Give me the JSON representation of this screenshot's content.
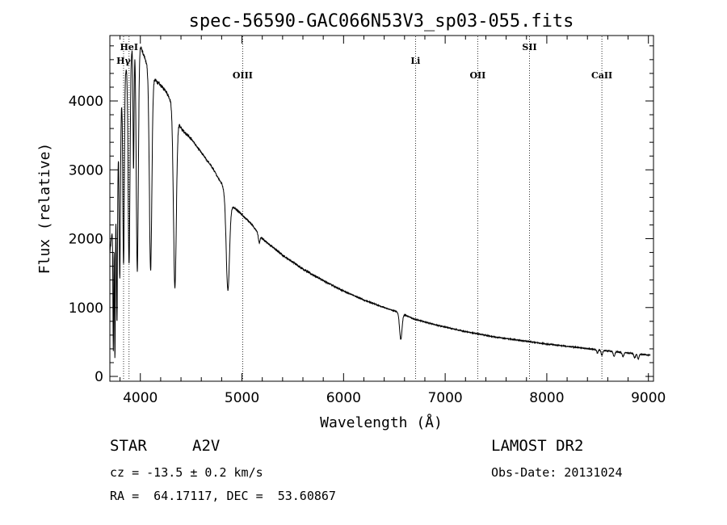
{
  "info": {
    "object_type": "STAR",
    "subclass": "A2V",
    "survey": "LAMOST DR2",
    "cz": "cz = -13.5 ± 0.2 km/s",
    "obs_date": "Obs-Date: 20131024",
    "coords": "RA =  64.17117, DEC =  53.60867"
  },
  "chart_data": {
    "type": "line",
    "title": "spec-56590-GAC066N53V3_sp03-055.fits",
    "xlabel": "Wavelength (Å)",
    "ylabel": "Flux (relative)",
    "xlim": [
      3700,
      9050
    ],
    "ylim": [
      -70,
      4950
    ],
    "xticks": [
      4000,
      5000,
      6000,
      7000,
      8000,
      9000
    ],
    "yticks": [
      0,
      1000,
      2000,
      3000,
      4000
    ],
    "spectral_lines": [
      {
        "label": "Hγ",
        "wavelength": 3835,
        "label_level": 2
      },
      {
        "label": "HeI",
        "wavelength": 3889,
        "label_level": 1
      },
      {
        "label": "OIII",
        "wavelength": 5007,
        "label_level": 3
      },
      {
        "label": "Li",
        "wavelength": 6708,
        "label_level": 2
      },
      {
        "label": "OII",
        "wavelength": 7320,
        "label_level": 3
      },
      {
        "label": "SII",
        "wavelength": 7830,
        "label_level": 1
      },
      {
        "label": "CaII",
        "wavelength": 8542,
        "label_level": 3
      }
    ],
    "continuum": {
      "x": [
        3700,
        3760,
        3800,
        3850,
        3900,
        3950,
        4000,
        4060,
        4100,
        4150,
        4250,
        4300,
        4400,
        4500,
        4600,
        4700,
        4800,
        4900,
        5000,
        5100,
        5200,
        5400,
        5600,
        5800,
        6000,
        6200,
        6400,
        6560,
        6700,
        6900,
        7200,
        7500,
        7800,
        8000,
        8300,
        8600,
        8800,
        9000
      ],
      "y": [
        1800,
        2600,
        3800,
        4400,
        4700,
        4850,
        4800,
        4550,
        4350,
        4300,
        4150,
        4000,
        3600,
        3450,
        3250,
        3050,
        2800,
        2480,
        2350,
        2200,
        2000,
        1760,
        1560,
        1390,
        1240,
        1110,
        1000,
        920,
        830,
        750,
        650,
        570,
        510,
        470,
        420,
        370,
        340,
        310
      ]
    },
    "absorption_lines": [
      {
        "center": 3734,
        "depth": 1900,
        "width": 4
      },
      {
        "center": 3750,
        "depth": 2200,
        "width": 4
      },
      {
        "center": 3770,
        "depth": 2100,
        "width": 5
      },
      {
        "center": 3798,
        "depth": 2300,
        "width": 6
      },
      {
        "center": 3835,
        "depth": 2600,
        "width": 7
      },
      {
        "center": 3889,
        "depth": 3000,
        "width": 9
      },
      {
        "center": 3933,
        "depth": 1800,
        "width": 5
      },
      {
        "center": 3970,
        "depth": 3300,
        "width": 10
      },
      {
        "center": 4101,
        "depth": 2800,
        "width": 12
      },
      {
        "center": 4340,
        "depth": 2550,
        "width": 14
      },
      {
        "center": 4861,
        "depth": 1350,
        "width": 16
      },
      {
        "center": 5170,
        "depth": 120,
        "width": 8
      },
      {
        "center": 6563,
        "depth": 380,
        "width": 12
      },
      {
        "center": 8498,
        "depth": 50,
        "width": 6
      },
      {
        "center": 8542,
        "depth": 70,
        "width": 8
      },
      {
        "center": 8662,
        "depth": 70,
        "width": 8
      },
      {
        "center": 8750,
        "depth": 60,
        "width": 8
      },
      {
        "center": 8865,
        "depth": 60,
        "width": 8
      },
      {
        "center": 8900,
        "depth": 70,
        "width": 8
      }
    ]
  }
}
